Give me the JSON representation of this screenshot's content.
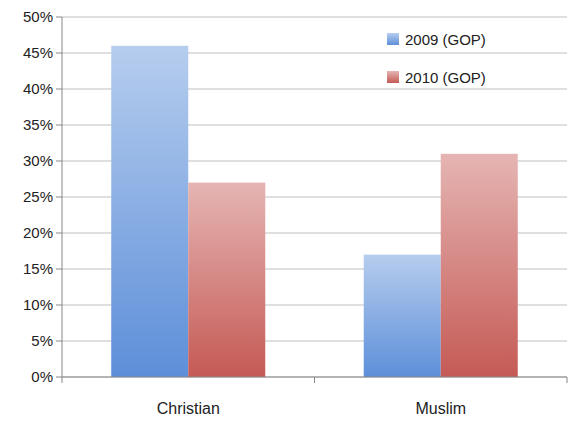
{
  "chart_data": {
    "type": "bar",
    "categories": [
      "Christian",
      "Muslim"
    ],
    "series": [
      {
        "name": "2009 (GOP)",
        "color": "#5d8fd9",
        "values": [
          46,
          17
        ]
      },
      {
        "name": "2010 (GOP)",
        "color": "#c55a55",
        "values": [
          27,
          31
        ]
      }
    ],
    "ylim": [
      0,
      50
    ],
    "yticks": [
      {
        "value": 0,
        "label": "0%"
      },
      {
        "value": 5,
        "label": "5%"
      },
      {
        "value": 10,
        "label": "10%"
      },
      {
        "value": 15,
        "label": "15%"
      },
      {
        "value": 20,
        "label": "20%"
      },
      {
        "value": 25,
        "label": "25%"
      },
      {
        "value": 30,
        "label": "30%"
      },
      {
        "value": 35,
        "label": "35%"
      },
      {
        "value": 40,
        "label": "40%"
      },
      {
        "value": 45,
        "label": "45%"
      },
      {
        "value": 50,
        "label": "50%"
      }
    ],
    "grid": true,
    "legend": "top-right"
  }
}
